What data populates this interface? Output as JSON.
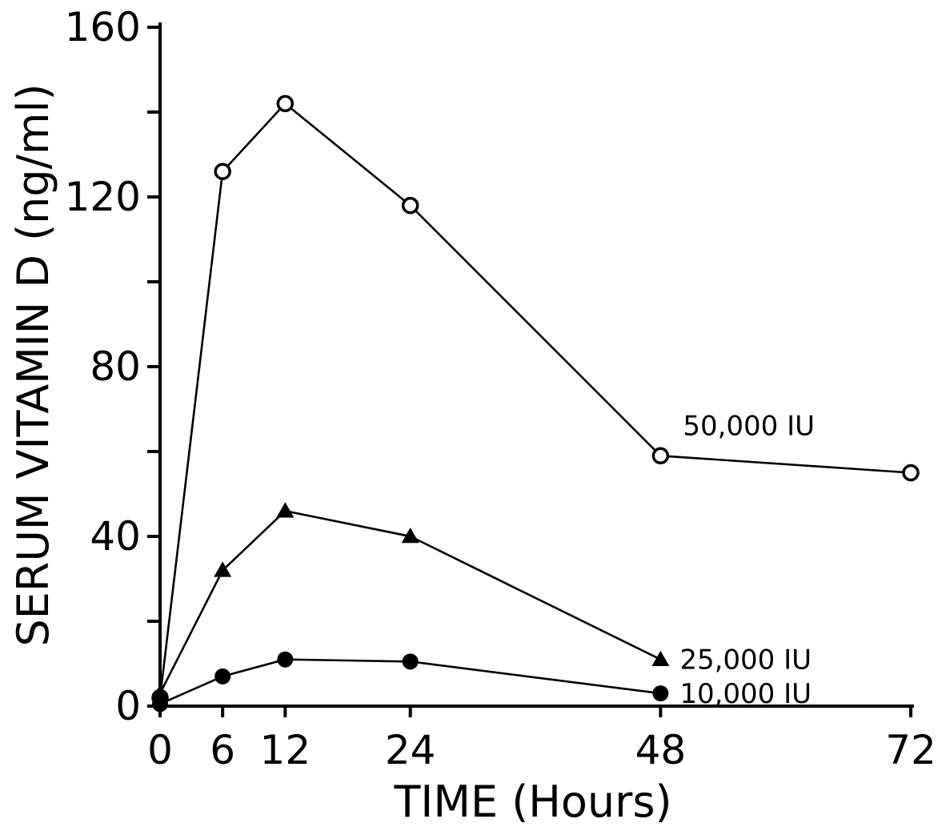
{
  "chart_data": {
    "type": "line",
    "xlabel": "TIME (Hours)",
    "ylabel": "SERUM VITAMIN D (ng/ml)",
    "xlim": [
      0,
      72
    ],
    "ylim": [
      0,
      160
    ],
    "x_ticks": [
      0,
      6,
      12,
      24,
      48,
      72
    ],
    "x_tick_labels": [
      "0",
      "6",
      "12",
      "24",
      "48",
      "72"
    ],
    "y_ticks": [
      0,
      20,
      40,
      60,
      80,
      100,
      120,
      140,
      160
    ],
    "y_tick_labels": [
      "0",
      "",
      "40",
      "",
      "80",
      "",
      "120",
      "",
      "160"
    ],
    "grid": false,
    "legend": "inline labels at right end of each series",
    "series": [
      {
        "name": "50,000 IU",
        "marker": "open-circle",
        "x": [
          0,
          6,
          12,
          24,
          48,
          72
        ],
        "y": [
          2,
          126,
          142,
          118,
          59,
          55
        ]
      },
      {
        "name": "25,000 IU",
        "marker": "filled-triangle",
        "x": [
          0,
          6,
          12,
          24,
          48
        ],
        "y": [
          3,
          32,
          46,
          40,
          11
        ]
      },
      {
        "name": "10,000 IU",
        "marker": "filled-circle",
        "x": [
          0,
          6,
          12,
          24,
          48
        ],
        "y": [
          0.5,
          7,
          11,
          10.5,
          3
        ]
      }
    ]
  }
}
